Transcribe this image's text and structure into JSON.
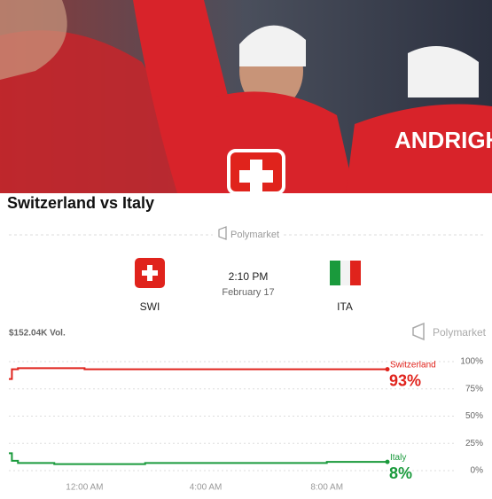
{
  "header": {
    "title": "Switzerland vs Italy",
    "brand": "Polymarket"
  },
  "match": {
    "home": "SWI",
    "away": "ITA",
    "time": "2:10 PM",
    "date": "February 17",
    "volume": "$152.04K Vol.",
    "brand": "Polymarket"
  },
  "chart_data": {
    "type": "line",
    "x": [
      -2.5,
      -2.4,
      -2.2,
      -1,
      0,
      2,
      4,
      6,
      8,
      10
    ],
    "xlim": [
      -2.5,
      10
    ],
    "xticks": [
      {
        "value": 0,
        "label": "12:00 AM"
      },
      {
        "value": 4,
        "label": "4:00 AM"
      },
      {
        "value": 8,
        "label": "8:00 AM"
      }
    ],
    "ylim": [
      0,
      100
    ],
    "yticks": [
      {
        "value": 100,
        "label": "100%"
      },
      {
        "value": 75,
        "label": "75%"
      },
      {
        "value": 50,
        "label": "50%"
      },
      {
        "value": 25,
        "label": "25%"
      },
      {
        "value": 0,
        "label": "0%"
      }
    ],
    "grid": true,
    "series": [
      {
        "name": "Switzerland",
        "color": "#e0231c",
        "values": [
          84,
          93,
          94,
          94,
          93,
          93,
          93,
          93,
          93,
          93
        ],
        "value_labels": [
          null,
          null,
          null,
          null,
          null,
          null,
          null,
          null,
          null,
          "93%"
        ]
      },
      {
        "name": "Italy",
        "color": "#1a9a3c",
        "values": [
          16,
          9,
          7,
          6,
          6,
          7,
          7,
          7,
          8,
          8
        ],
        "value_labels": [
          null,
          null,
          null,
          null,
          null,
          null,
          null,
          null,
          null,
          "8%"
        ]
      }
    ]
  }
}
